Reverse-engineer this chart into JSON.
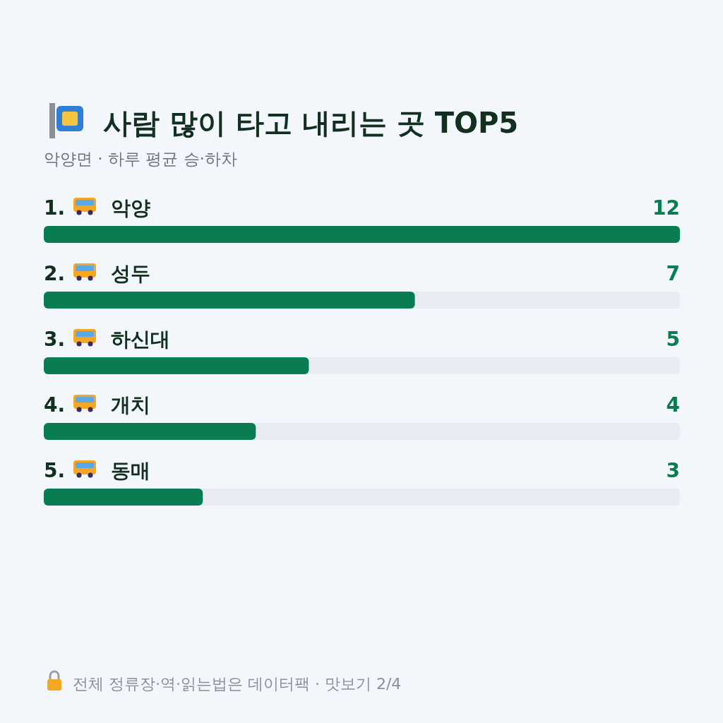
{
  "chart_data": {
    "type": "bar",
    "orientation": "horizontal",
    "title": "사람 많이 타고 내리는 곳 TOP5",
    "subtitle": "악양면 · 하루 평균 승·하차",
    "categories": [
      "1. 악양",
      "2. 성두",
      "3. 하신대",
      "4. 개치",
      "5. 동매"
    ],
    "values": [
      12,
      7,
      5,
      4,
      3
    ],
    "color": "#0a7c52",
    "data_labels": true,
    "annotations": [
      "전체 정류장·역·읽는법은 데이터팩 · 맛보기 2/4"
    ]
  }
}
